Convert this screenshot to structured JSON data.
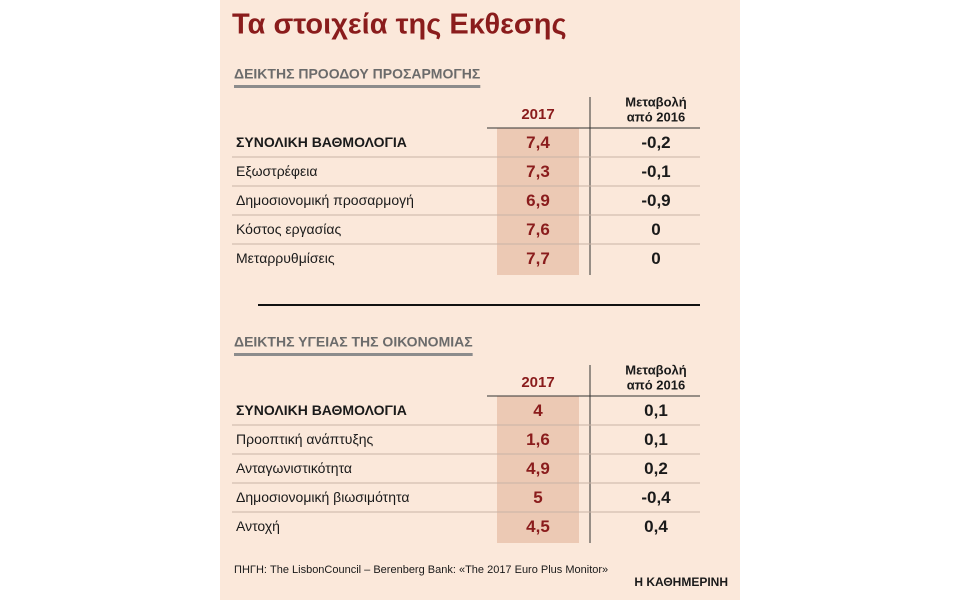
{
  "title": "Τα στοιχεία της Εκθεσης",
  "tables": [
    {
      "heading": "ΔΕΙΚΤΗΣ ΠΡΟΟΔΟΥ ΠΡΟΣΑΡΜΟΓΗΣ",
      "year_header": "2017",
      "change_header": [
        "Μεταβολή",
        "από 2016"
      ],
      "rows": [
        [
          "ΣΥΝΟΛΙΚΗ ΒΑΘΜΟΛΟΓΙΑ",
          "7,4",
          "-0,2"
        ],
        [
          "Εξωστρέφεια",
          "7,3",
          "-0,1"
        ],
        [
          "Δημοσιονομική προσαρμογή",
          "6,9",
          "-0,9"
        ],
        [
          "Κόστος εργασίας",
          "7,6",
          "0"
        ],
        [
          "Μεταρρυθμίσεις",
          "7,7",
          "0"
        ]
      ]
    },
    {
      "heading": "ΔΕΙΚΤΗΣ ΥΓΕΙΑΣ ΤΗΣ ΟΙΚΟΝΟΜΙΑΣ",
      "year_header": "2017",
      "change_header": [
        "Μεταβολή",
        "από 2016"
      ],
      "rows": [
        [
          "ΣΥΝΟΛΙΚΗ ΒΑΘΜΟΛΟΓΙΑ",
          "4",
          "0,1"
        ],
        [
          "Προοπτική ανάπτυξης",
          "1,6",
          "0,1"
        ],
        [
          "Ανταγωνιστικότητα",
          "4,9",
          "0,2"
        ],
        [
          "Δημοσιονομική βιωσιμότητα",
          "5",
          "-0,4"
        ],
        [
          "Αντοχή",
          "4,5",
          "0,4"
        ]
      ]
    }
  ],
  "source": "ΠΗΓΗ: The LisbonCouncil – Berenberg Bank: «The 2017 Euro Plus Monitor»",
  "brand": "Η ΚΑΘΗΜΕΡΙΝΗ"
}
